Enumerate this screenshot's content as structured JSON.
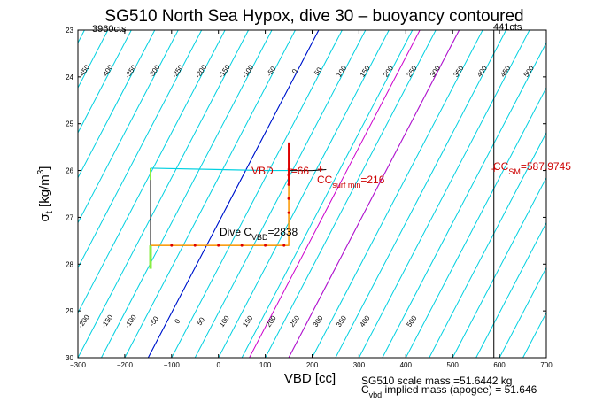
{
  "chart_data": {
    "type": "line",
    "title": "SG510 North Sea Hypox, dive 30 – buoyancy contoured",
    "xlabel": "VBD [cc]",
    "ylabel": "σt [kg/m3]",
    "ylabel_main": "σ",
    "ylabel_sub": "t",
    "ylabel_unit": " [kg/m",
    "ylabel_sup": "3",
    "ylabel_close": "]",
    "xlim": [
      -300,
      700
    ],
    "ylim": [
      23,
      30
    ],
    "y_reversed": true,
    "x_ticks": [
      -300,
      -200,
      -100,
      0,
      100,
      200,
      300,
      400,
      500,
      600,
      700
    ],
    "y_ticks": [
      23,
      24,
      25,
      26,
      27,
      28,
      29,
      30
    ],
    "counts_left": "3960cts",
    "counts_right": "441cts",
    "colors": {
      "contour": "#00d0e0",
      "blue": "#0000cc",
      "magenta": "#cc00cc",
      "red": "#dd0000",
      "orange": "#ff9900",
      "green": "#88ee44",
      "black": "#000000"
    },
    "contour_labels_top": [
      {
        "label": "-450",
        "v": -450
      },
      {
        "label": "-400",
        "v": -400
      },
      {
        "label": "-350",
        "v": -350
      },
      {
        "label": "-300",
        "v": -300
      },
      {
        "label": "-250",
        "v": -250
      },
      {
        "label": "-200",
        "v": -200
      },
      {
        "label": "-150",
        "v": -150
      },
      {
        "label": "-100",
        "v": -100
      },
      {
        "label": "-50",
        "v": -50
      },
      {
        "label": "0",
        "v": 0
      },
      {
        "label": "50",
        "v": 50
      },
      {
        "label": "100",
        "v": 100
      },
      {
        "label": "150",
        "v": 150
      },
      {
        "label": "200",
        "v": 200
      },
      {
        "label": "250",
        "v": 250
      },
      {
        "label": "300",
        "v": 300
      },
      {
        "label": "350",
        "v": 350
      },
      {
        "label": "400",
        "v": 400
      },
      {
        "label": "450",
        "v": 450
      },
      {
        "label": "500",
        "v": 500
      }
    ],
    "contour_labels_bottom": [
      {
        "label": "-200",
        "v": -200
      },
      {
        "label": "-150",
        "v": -150
      },
      {
        "label": "-100",
        "v": -100
      },
      {
        "label": "-50",
        "v": -50
      },
      {
        "label": "0",
        "v": 0
      },
      {
        "label": "50",
        "v": 50
      },
      {
        "label": "100",
        "v": 100
      },
      {
        "label": "150",
        "v": 150
      },
      {
        "label": "200",
        "v": 200
      },
      {
        "label": "250",
        "v": 250
      },
      {
        "label": "300",
        "v": 300
      },
      {
        "label": "350",
        "v": 350
      },
      {
        "label": "400",
        "v": 400
      },
      {
        "label": "500",
        "v": 500
      }
    ],
    "special_lines": [
      {
        "name": "blue",
        "v": 0,
        "color": "#0000cc"
      },
      {
        "name": "magenta1",
        "v": 216,
        "color": "#cc00cc"
      },
      {
        "name": "magenta2",
        "v": 300,
        "color": "#cc00cc"
      }
    ],
    "cc_sm_line_x": 587.9745,
    "dive_path": [
      {
        "x": -145,
        "y": 25.95
      },
      {
        "x": -145,
        "y": 27.6
      },
      {
        "x": 150,
        "y": 27.6
      },
      {
        "x": 150,
        "y": 26.0
      },
      {
        "x": 200,
        "y": 26.0
      },
      {
        "x": 230,
        "y": 25.98
      }
    ],
    "surface_path": [
      {
        "x": -145,
        "y": 25.95
      },
      {
        "x": 100,
        "y": 26.0
      },
      {
        "x": 150,
        "y": 26.0
      }
    ],
    "orange_points": [
      {
        "x": -100,
        "y": 27.6
      },
      {
        "x": -50,
        "y": 27.6
      },
      {
        "x": 0,
        "y": 27.6
      },
      {
        "x": 50,
        "y": 27.6
      },
      {
        "x": 100,
        "y": 27.6
      },
      {
        "x": 140,
        "y": 27.6
      }
    ],
    "red_points": [
      {
        "x": 150,
        "y": 26.9
      },
      {
        "x": 150,
        "y": 26.6
      },
      {
        "x": 150,
        "y": 26.3
      },
      {
        "x": 150,
        "y": 26.1
      }
    ],
    "vbd_marker": {
      "x": 150,
      "y": 26.0
    },
    "cc_surf_marker": {
      "x": 216,
      "y": 26.0
    },
    "annotations": {
      "vbd_text": "VBD",
      "vbd_value": "=66",
      "cc_surf_main": "CC",
      "cc_surf_sub": "surf min",
      "cc_surf_value": "=216",
      "cc_sm_main": "CC",
      "cc_sm_sub": "SM",
      "cc_sm_value": "=587.9745",
      "dive_main": "Dive C",
      "dive_sub": "VBD",
      "dive_value": "=2838"
    },
    "footer": {
      "line1": "SG510 scale mass =51.6442 kg",
      "line2_main": "C",
      "line2_sub": "vbd",
      "line2_rest": " implied mass (apogee) = 51.646"
    }
  }
}
